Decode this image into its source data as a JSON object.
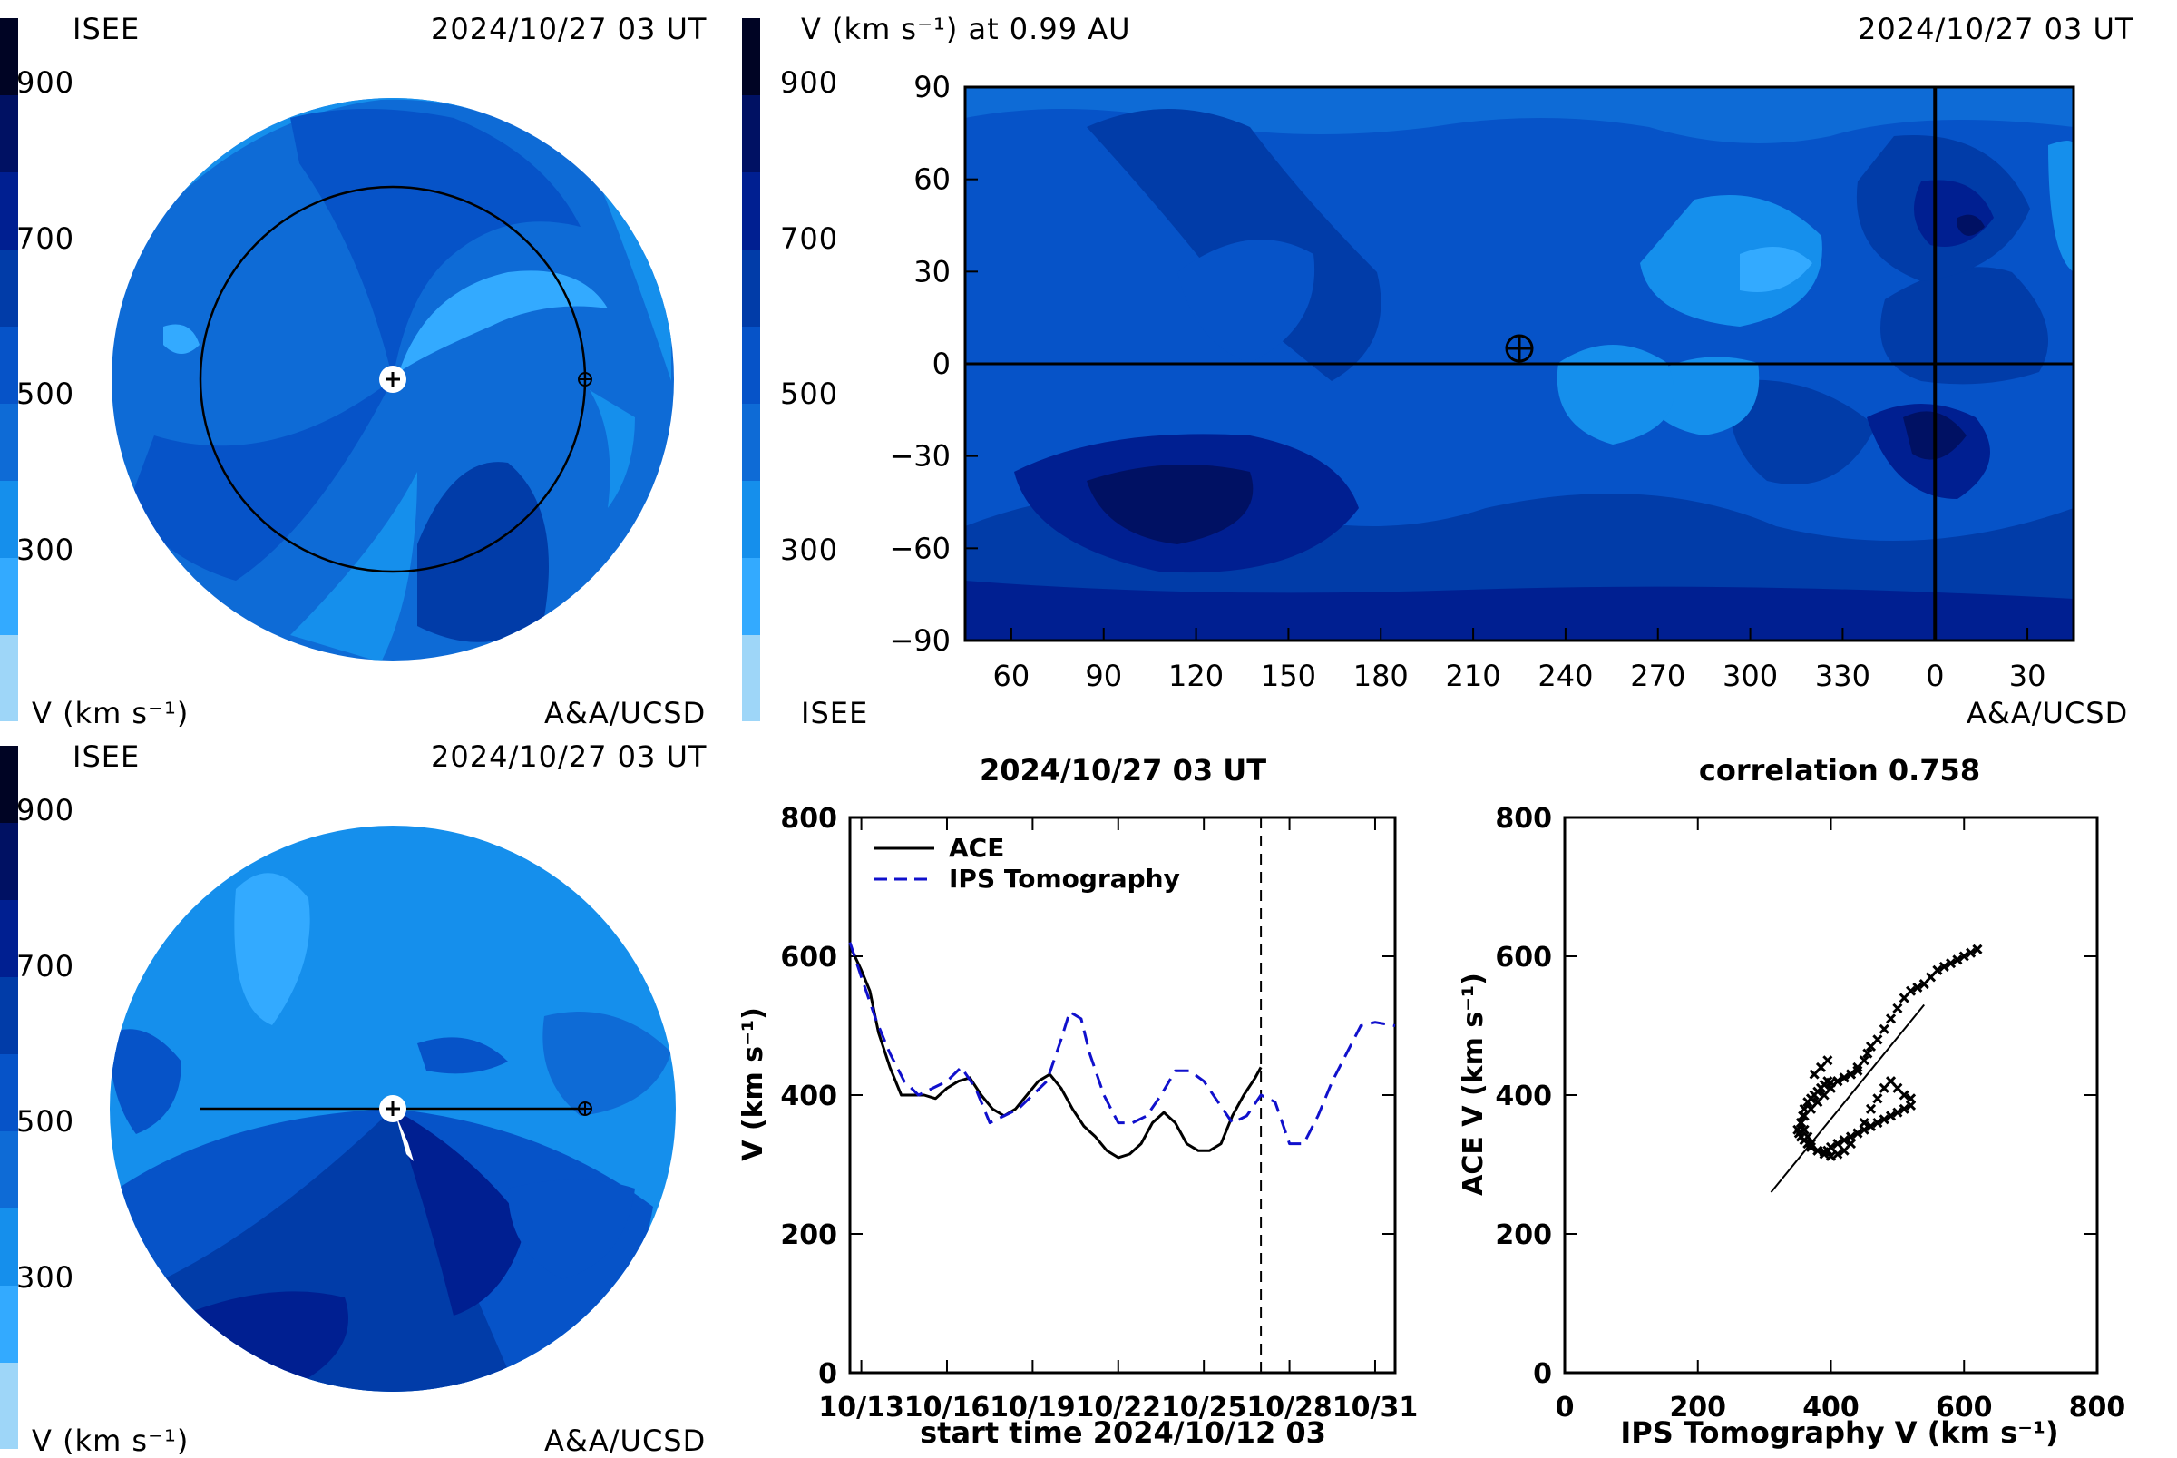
{
  "colors": {
    "v100": "#9ed6f8",
    "v200": "#33aaff",
    "v300": "#158fec",
    "v400": "#0e6bd6",
    "v500": "#0653c8",
    "v600": "#013ca8",
    "v700": "#001f91",
    "v800": "#001163",
    "v900": "#000424",
    "ips_line": "#1010cc"
  },
  "colorbar": {
    "ticks": [
      "900",
      "700",
      "500",
      "300"
    ],
    "unit": "V (km s⁻¹)"
  },
  "panel_tl": {
    "source": "ISEE",
    "date": "2024/10/27 03 UT",
    "unit": "V (km s⁻¹)",
    "credit": "A&A/UCSD",
    "colorbar": [
      "900",
      "700",
      "500",
      "300"
    ]
  },
  "panel_tr": {
    "title": "V (km s⁻¹) at 0.99 AU",
    "date": "2024/10/27 03 UT",
    "source": "ISEE",
    "credit": "A&A/UCSD",
    "colorbar": [
      "900",
      "700",
      "500",
      "300"
    ],
    "y_ticks": [
      "90",
      "60",
      "30",
      "0",
      "−30",
      "−60",
      "−90"
    ],
    "x_ticks": [
      "60",
      "90",
      "120",
      "150",
      "180",
      "210",
      "240",
      "270",
      "300",
      "330",
      "0",
      "30"
    ],
    "earth_marker": {
      "lon": 225,
      "lat": 5
    },
    "vertical_line_lon": 0
  },
  "panel_bl": {
    "source": "ISEE",
    "date": "2024/10/27 03 UT",
    "unit": "V (km s⁻¹)",
    "credit": "A&A/UCSD",
    "colorbar": [
      "900",
      "700",
      "500",
      "300"
    ]
  },
  "chart_data": [
    {
      "type": "line",
      "title": "2024/10/27 03 UT",
      "xlabel": "start time 2024/10/12 03",
      "ylabel": "V (km s⁻¹)",
      "x_tick_labels": [
        "10/13",
        "10/16",
        "10/19",
        "10/22",
        "10/25",
        "10/28",
        "10/31"
      ],
      "x_tick_days": [
        1,
        4,
        7,
        10,
        13,
        16,
        19
      ],
      "xlim_days": [
        0.6,
        19.7
      ],
      "ylim": [
        0,
        800
      ],
      "y_ticks": [
        "0",
        "200",
        "400",
        "600",
        "800"
      ],
      "marker_day": 15.0,
      "legend": [
        "ACE",
        "IPS Tomography"
      ],
      "series": [
        {
          "name": "ACE",
          "style": "solid",
          "x": [
            0.6,
            1.0,
            1.3,
            1.6,
            2.0,
            2.4,
            2.8,
            3.2,
            3.6,
            4.0,
            4.4,
            4.8,
            5.2,
            5.6,
            6.0,
            6.4,
            6.8,
            7.2,
            7.6,
            8.0,
            8.4,
            8.8,
            9.2,
            9.6,
            10.0,
            10.4,
            10.8,
            11.2,
            11.6,
            12.0,
            12.4,
            12.8,
            13.2,
            13.6,
            14.0,
            14.4,
            14.8,
            15.0
          ],
          "y": [
            615,
            580,
            550,
            490,
            440,
            400,
            400,
            400,
            395,
            410,
            420,
            425,
            400,
            380,
            370,
            380,
            400,
            420,
            430,
            410,
            380,
            355,
            340,
            320,
            310,
            315,
            330,
            360,
            375,
            360,
            330,
            320,
            320,
            330,
            370,
            400,
            425,
            440
          ]
        },
        {
          "name": "IPS Tomography",
          "style": "dashed",
          "x": [
            0.6,
            1.0,
            1.5,
            2.0,
            2.5,
            3.0,
            3.5,
            4.0,
            4.5,
            5.0,
            5.5,
            6.0,
            6.5,
            7.0,
            7.5,
            8.0,
            8.3,
            8.7,
            9.0,
            9.5,
            10.0,
            10.5,
            11.0,
            11.5,
            12.0,
            12.5,
            13.0,
            13.5,
            14.0,
            14.5,
            15.0,
            15.5,
            16.0,
            16.5,
            17.0,
            17.5,
            18.0,
            18.5,
            19.0,
            19.7
          ],
          "y": [
            620,
            570,
            510,
            460,
            420,
            400,
            410,
            420,
            440,
            410,
            360,
            370,
            380,
            400,
            420,
            480,
            520,
            510,
            460,
            400,
            360,
            360,
            370,
            400,
            435,
            435,
            420,
            390,
            360,
            370,
            400,
            390,
            330,
            330,
            370,
            420,
            460,
            500,
            505,
            500
          ]
        }
      ]
    },
    {
      "type": "scatter",
      "title": "correlation 0.758",
      "xlabel": "IPS Tomography V (km s⁻¹)",
      "ylabel": "ACE V (km s⁻¹)",
      "xlim": [
        0,
        800
      ],
      "ylim": [
        0,
        800
      ],
      "x_ticks": [
        "0",
        "200",
        "400",
        "600",
        "800"
      ],
      "y_ticks": [
        "0",
        "200",
        "400",
        "600",
        "800"
      ],
      "fit_line": {
        "x": [
          310,
          540
        ],
        "y": [
          260,
          530
        ]
      },
      "points": {
        "x": [
          620,
          610,
          600,
          590,
          580,
          570,
          560,
          550,
          540,
          530,
          520,
          510,
          500,
          490,
          480,
          470,
          460,
          455,
          450,
          440,
          430,
          420,
          410,
          400,
          395,
          390,
          385,
          380,
          375,
          370,
          365,
          360,
          358,
          355,
          360,
          365,
          370,
          380,
          390,
          400,
          410,
          420,
          430,
          440,
          450,
          460,
          470,
          480,
          490,
          500,
          510,
          520,
          520,
          510,
          500,
          490,
          480,
          470,
          460,
          450,
          440,
          430,
          420,
          410,
          400,
          395,
          390,
          380,
          370,
          365,
          360,
          355,
          352,
          350,
          355,
          360,
          370,
          380,
          390,
          400,
          410,
          420,
          430,
          440,
          395,
          385,
          375
        ],
        "y": [
          610,
          605,
          600,
          595,
          590,
          585,
          580,
          570,
          560,
          555,
          550,
          540,
          525,
          510,
          495,
          480,
          470,
          460,
          450,
          440,
          430,
          425,
          420,
          418,
          420,
          415,
          410,
          405,
          400,
          395,
          390,
          380,
          370,
          360,
          350,
          340,
          330,
          320,
          315,
          312,
          315,
          320,
          330,
          345,
          360,
          380,
          395,
          410,
          420,
          410,
          400,
          395,
          385,
          380,
          375,
          370,
          365,
          360,
          355,
          350,
          345,
          340,
          335,
          330,
          325,
          320,
          318,
          320,
          325,
          330,
          335,
          340,
          345,
          350,
          360,
          370,
          380,
          390,
          400,
          410,
          420,
          425,
          430,
          435,
          450,
          440,
          430
        ]
      }
    }
  ]
}
